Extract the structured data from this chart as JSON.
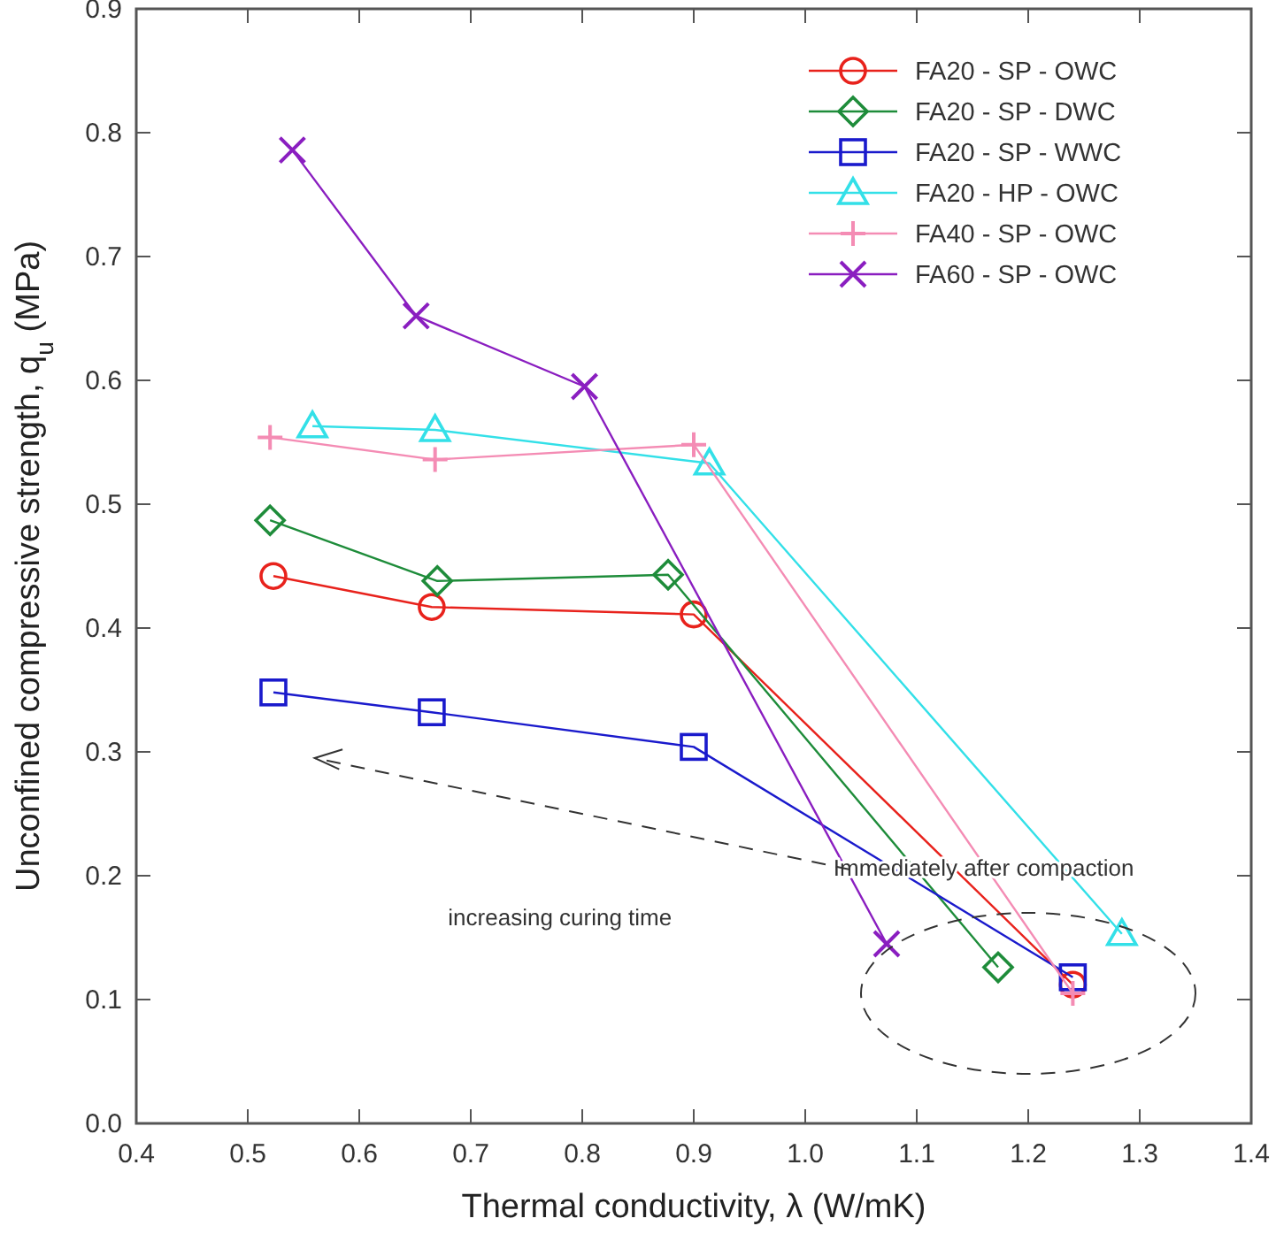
{
  "chart_data": {
    "type": "line",
    "xlabel": "Thermal conductivity, λ (W/mK)",
    "ylabel": "Unconfined compressive strength, q$_{u}$ (MPa)",
    "xlim": [
      0.4,
      1.4
    ],
    "xticks": [
      0.4,
      0.5,
      0.6,
      0.7,
      0.8,
      0.9,
      {
        "value": 1,
        "label": "1.0"
      },
      1.1,
      1.2,
      1.3,
      1.4
    ],
    "ylim": [
      0,
      0.9
    ],
    "yticks": [
      {
        "value": 0,
        "label": "0.0"
      },
      0.1,
      0.2,
      0.3,
      0.4,
      0.5,
      0.6,
      0.7,
      0.8,
      0.9
    ],
    "grid": false,
    "legend": "top right",
    "line_style": "solid",
    "series": [
      {
        "name": "FA20 - SP - OWC",
        "color": "#e8221c",
        "marker": "circle",
        "x": [
          0.523,
          0.665,
          0.9,
          1.24
        ],
        "values": [
          0.442,
          0.417,
          0.411,
          0.112
        ]
      },
      {
        "name": "FA20 - SP - DWC",
        "color": "#1e8c3a",
        "marker": "diamond",
        "x": [
          0.52,
          0.67,
          0.877,
          1.173
        ],
        "values": [
          0.487,
          0.438,
          0.443,
          0.126
        ]
      },
      {
        "name": "FA20 - SP - WWC",
        "color": "#1a1acc",
        "marker": "square",
        "x": [
          0.523,
          0.665,
          0.9,
          1.24
        ],
        "values": [
          0.348,
          0.332,
          0.304,
          0.118
        ]
      },
      {
        "name": "FA20 - HP - OWC",
        "color": "#33e0e8",
        "marker": "triangle",
        "x": [
          0.558,
          0.668,
          0.914,
          1.284
        ],
        "values": [
          0.563,
          0.56,
          0.533,
          0.153
        ]
      },
      {
        "name": "FA40 - SP - OWC",
        "color": "#f48cb4",
        "marker": "cross",
        "x": [
          0.52,
          0.668,
          0.9,
          1.24
        ],
        "values": [
          0.554,
          0.536,
          0.548,
          0.105
        ]
      },
      {
        "name": "FA60 - SP - OWC",
        "color": "#8a1ec0",
        "marker": "x",
        "x": [
          0.54,
          0.651,
          0.802,
          1.073
        ],
        "values": [
          0.786,
          0.652,
          0.595,
          0.145
        ]
      }
    ],
    "annotations": [
      "Immediately after compaction",
      "increasing curing time"
    ]
  }
}
